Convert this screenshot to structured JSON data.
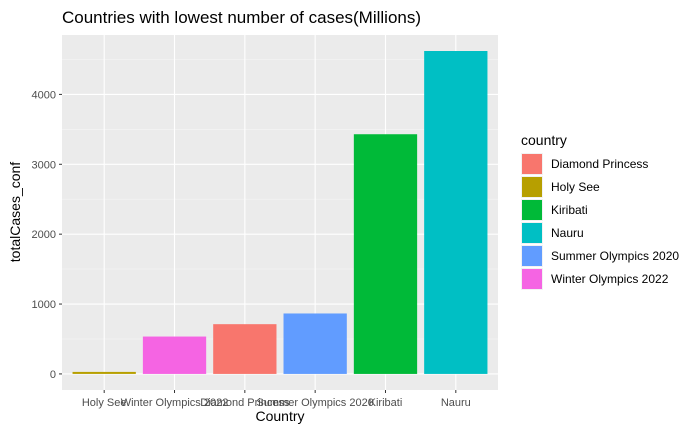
{
  "chart_data": {
    "type": "bar",
    "title": "Countries with lowest number of cases(Millions)",
    "xlabel": "Country",
    "ylabel": "totalCases_conf",
    "categories": [
      "Holy See",
      "Winter Olympics 2022",
      "Diamond Princess",
      "Summer Olympics 2020",
      "Kiribati",
      "Nauru"
    ],
    "values": [
      29,
      535,
      712,
      865,
      3430,
      4621
    ],
    "colors": [
      "#b79f00",
      "#f564e3",
      "#f8766d",
      "#619cff",
      "#00ba38",
      "#00bfc4"
    ],
    "yticks": [
      0,
      1000,
      2000,
      3000,
      4000
    ],
    "ylim": [
      -230,
      4850
    ],
    "grid": true,
    "legend": {
      "title": "country",
      "placement": "right",
      "entries": [
        {
          "label": "Diamond Princess",
          "color": "#f8766d"
        },
        {
          "label": "Holy See",
          "color": "#b79f00"
        },
        {
          "label": "Kiribati",
          "color": "#00ba38"
        },
        {
          "label": "Nauru",
          "color": "#00bfc4"
        },
        {
          "label": "Summer Olympics 2020",
          "color": "#619cff"
        },
        {
          "label": "Winter Olympics 2022",
          "color": "#f564e3"
        }
      ]
    }
  }
}
